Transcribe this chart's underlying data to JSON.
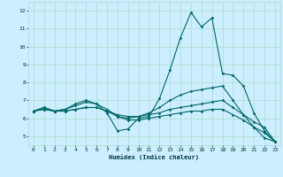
{
  "xlabel": "Humidex (Indice chaleur)",
  "bg_color": "#cceeff",
  "grid_color": "#aaddcc",
  "line_color": "#006666",
  "xlim": [
    -0.5,
    23.5
  ],
  "ylim": [
    4.5,
    12.5
  ],
  "xticks": [
    0,
    1,
    2,
    3,
    4,
    5,
    6,
    7,
    8,
    9,
    10,
    11,
    12,
    13,
    14,
    15,
    16,
    17,
    18,
    19,
    20,
    21,
    22,
    23
  ],
  "yticks": [
    5,
    6,
    7,
    8,
    9,
    10,
    11,
    12
  ],
  "series": [
    {
      "x": [
        0,
        1,
        2,
        3,
        4,
        5,
        6,
        7,
        8,
        9,
        10,
        11,
        12,
        13,
        14,
        15,
        16,
        17,
        18,
        19,
        20,
        21,
        22,
        23
      ],
      "y": [
        6.4,
        6.6,
        6.4,
        6.5,
        6.8,
        7.0,
        6.8,
        6.3,
        5.3,
        5.4,
        6.0,
        6.1,
        7.1,
        8.7,
        10.5,
        11.9,
        11.1,
        11.6,
        8.5,
        8.4,
        7.8,
        6.3,
        5.3,
        4.7
      ]
    },
    {
      "x": [
        0,
        1,
        2,
        3,
        4,
        5,
        6,
        7,
        8,
        9,
        10,
        11,
        12,
        13,
        14,
        15,
        16,
        17,
        18,
        19,
        20,
        21,
        22,
        23
      ],
      "y": [
        6.4,
        6.6,
        6.4,
        6.5,
        6.7,
        6.9,
        6.8,
        6.5,
        6.1,
        6.0,
        6.1,
        6.3,
        6.6,
        7.0,
        7.3,
        7.5,
        7.6,
        7.7,
        7.8,
        7.0,
        6.2,
        5.5,
        4.9,
        4.7
      ]
    },
    {
      "x": [
        0,
        1,
        2,
        3,
        4,
        5,
        6,
        7,
        8,
        9,
        10,
        11,
        12,
        13,
        14,
        15,
        16,
        17,
        18,
        19,
        20,
        21,
        22,
        23
      ],
      "y": [
        6.4,
        6.5,
        6.4,
        6.4,
        6.5,
        6.6,
        6.6,
        6.4,
        6.2,
        6.1,
        6.1,
        6.2,
        6.3,
        6.5,
        6.6,
        6.7,
        6.8,
        6.9,
        7.0,
        6.6,
        6.2,
        5.8,
        5.5,
        4.7
      ]
    },
    {
      "x": [
        0,
        1,
        2,
        3,
        4,
        5,
        6,
        7,
        8,
        9,
        10,
        11,
        12,
        13,
        14,
        15,
        16,
        17,
        18,
        19,
        20,
        21,
        22,
        23
      ],
      "y": [
        6.4,
        6.5,
        6.4,
        6.4,
        6.5,
        6.6,
        6.6,
        6.4,
        6.1,
        5.9,
        5.9,
        6.0,
        6.1,
        6.2,
        6.3,
        6.4,
        6.4,
        6.5,
        6.5,
        6.2,
        5.9,
        5.5,
        5.2,
        4.7
      ]
    }
  ]
}
